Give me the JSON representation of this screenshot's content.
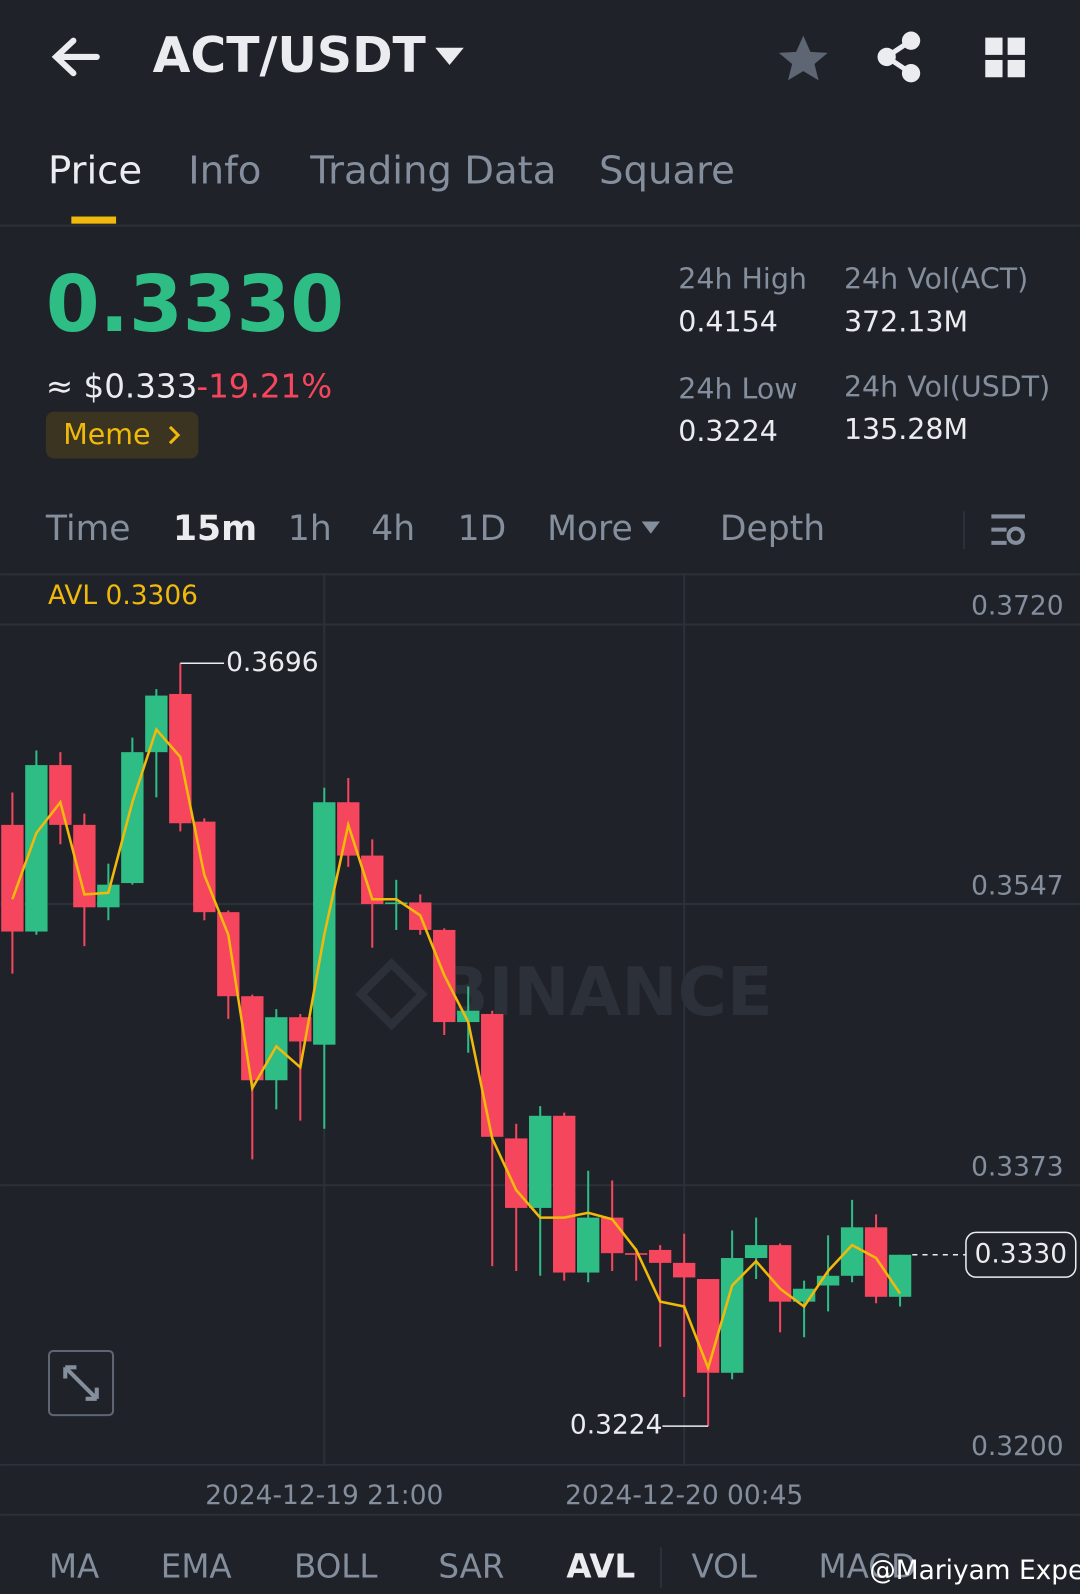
{
  "header": {
    "title": "ACT/USDT"
  },
  "tabs": [
    "Price",
    "Info",
    "Trading Data",
    "Square"
  ],
  "ticker": {
    "price": "0.3330",
    "usd": "≈ $0.333",
    "change": "-19.21%",
    "tag": "Meme",
    "stats": [
      {
        "label": "24h High",
        "value": "0.4154"
      },
      {
        "label": "24h Vol(ACT)",
        "value": "372.13M"
      },
      {
        "label": "24h Low",
        "value": "0.3224"
      },
      {
        "label": "24h Vol(USDT)",
        "value": "135.28M"
      }
    ]
  },
  "intervals": [
    "Time",
    "15m",
    "1h",
    "4h",
    "1D",
    "More",
    "Depth"
  ],
  "indicators": [
    "MA",
    "EMA",
    "BOLL",
    "SAR",
    "AVL",
    "VOL",
    "MACD"
  ],
  "watermark": "BINANCE",
  "credit": "@Mariyam Expert",
  "chart_data": {
    "type": "candlestick",
    "legend_label": "AVL 0.3306",
    "categories": [
      null,
      null,
      null,
      null,
      null,
      null,
      null,
      null,
      null,
      null,
      null,
      null,
      null,
      "2024-12-19 21:00",
      null,
      null,
      null,
      null,
      null,
      null,
      null,
      null,
      null,
      null,
      null,
      null,
      null,
      null,
      "2024-12-20 00:45",
      null,
      null,
      null,
      null,
      null,
      null,
      null,
      null,
      null
    ],
    "open": [
      0.3596,
      0.353,
      0.3633,
      0.3596,
      0.3545,
      0.356,
      0.3641,
      0.3677,
      0.3598,
      0.3542,
      0.349,
      0.3438,
      0.3477,
      0.346,
      0.361,
      0.3577,
      0.3547,
      0.3548,
      0.3531,
      0.3474,
      0.3479,
      0.3402,
      0.3359,
      0.3416,
      0.3319,
      0.3353,
      0.3331,
      0.3333,
      0.3325,
      0.3315,
      0.3257,
      0.3328,
      0.3336,
      0.3301,
      0.3311,
      0.3317,
      0.3347,
      0.3304
    ],
    "high": [
      0.3616,
      0.3642,
      0.3641,
      0.3603,
      0.3572,
      0.365,
      0.368,
      0.3696,
      0.36,
      0.3543,
      0.3491,
      0.3482,
      0.3479,
      0.3619,
      0.3625,
      0.3587,
      0.3562,
      0.3553,
      0.3532,
      0.3496,
      0.3481,
      0.3411,
      0.3422,
      0.3418,
      0.3382,
      0.3376,
      0.3334,
      0.3336,
      0.3343,
      0.3315,
      0.3345,
      0.3353,
      0.3337,
      0.3314,
      0.3342,
      0.3364,
      0.3355,
      0.333
    ],
    "low": [
      0.3504,
      0.3528,
      0.3584,
      0.3521,
      0.3537,
      0.3559,
      0.3613,
      0.3592,
      0.3537,
      0.3476,
      0.3389,
      0.342,
      0.3413,
      0.3408,
      0.357,
      0.352,
      0.3531,
      0.3528,
      0.3466,
      0.3455,
      0.3323,
      0.332,
      0.3317,
      0.3314,
      0.3313,
      0.332,
      0.3314,
      0.3273,
      0.3242,
      0.3224,
      0.3253,
      0.3315,
      0.3282,
      0.3279,
      0.3295,
      0.3313,
      0.33,
      0.3298
    ],
    "close": [
      0.353,
      0.3633,
      0.3596,
      0.3545,
      0.3559,
      0.3641,
      0.3676,
      0.3597,
      0.3542,
      0.349,
      0.3438,
      0.3477,
      0.3462,
      0.361,
      0.3577,
      0.3547,
      0.3548,
      0.3531,
      0.3474,
      0.3481,
      0.3403,
      0.3359,
      0.3416,
      0.3319,
      0.3353,
      0.3331,
      0.333,
      0.3325,
      0.3316,
      0.3257,
      0.3328,
      0.3336,
      0.3301,
      0.3309,
      0.3317,
      0.3347,
      0.3304,
      0.333
    ],
    "avl": {
      "name": "AVL",
      "color": "#f0b90b",
      "values": [
        0.355,
        0.3591,
        0.361,
        0.3553,
        0.3554,
        0.361,
        0.3655,
        0.3638,
        0.3565,
        0.3528,
        0.3433,
        0.3459,
        0.3446,
        0.3528,
        0.3596,
        0.355,
        0.355,
        0.354,
        0.3503,
        0.3474,
        0.3402,
        0.337,
        0.3353,
        0.3353,
        0.3356,
        0.3352,
        0.3333,
        0.3301,
        0.3298,
        0.326,
        0.3311,
        0.3326,
        0.3309,
        0.3298,
        0.332,
        0.3336,
        0.3328,
        0.3306
      ]
    },
    "up_color": "#2ebd85",
    "down_color": "#f6465d",
    "ylim": [
      0.32,
      0.3751
    ],
    "yticks": [
      {
        "value": 0.32,
        "label": "0.3200"
      },
      {
        "value": 0.3373,
        "label": "0.3373"
      },
      {
        "value": 0.3547,
        "label": "0.3547"
      },
      {
        "value": 0.372,
        "label": "0.3720"
      }
    ],
    "grid": true,
    "high_label": "0.3696",
    "low_label": "0.3224",
    "last_label": "0.3330"
  }
}
